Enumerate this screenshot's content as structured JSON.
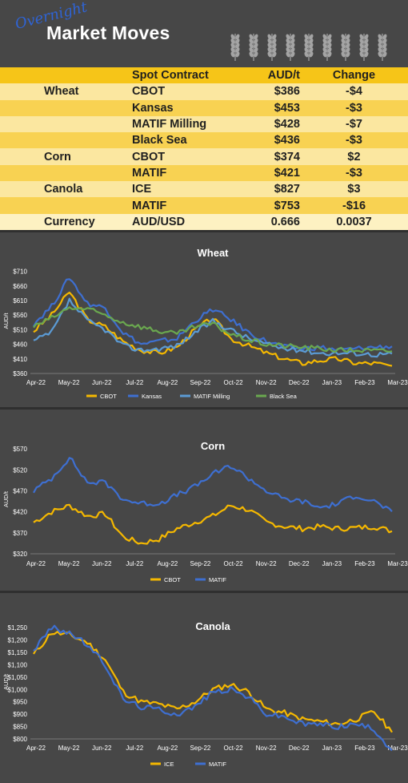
{
  "header": {
    "overnight": "Overnight",
    "title": "Market Moves"
  },
  "table": {
    "headers": {
      "contract": "Spot Contract",
      "price": "AUD/t",
      "change": "Change"
    },
    "rows": [
      {
        "commodity": "Wheat",
        "contract": "CBOT",
        "price": "$386",
        "change": "-$4",
        "dir": "neg"
      },
      {
        "commodity": "",
        "contract": "Kansas",
        "price": "$453",
        "change": "-$3",
        "dir": "neg"
      },
      {
        "commodity": "",
        "contract": "MATIF Milling",
        "price": "$428",
        "change": "-$7",
        "dir": "neg"
      },
      {
        "commodity": "",
        "contract": "Black Sea",
        "price": "$436",
        "change": "-$3",
        "dir": "neg"
      },
      {
        "commodity": "Corn",
        "contract": "CBOT",
        "price": "$374",
        "change": "$2",
        "dir": "pos"
      },
      {
        "commodity": "",
        "contract": "MATIF",
        "price": "$421",
        "change": "-$3",
        "dir": "neg"
      },
      {
        "commodity": "Canola",
        "contract": "ICE",
        "price": "$827",
        "change": "$3",
        "dir": "pos"
      },
      {
        "commodity": "",
        "contract": "MATIF",
        "price": "$753",
        "change": "-$16",
        "dir": "neg"
      },
      {
        "commodity": "Currency",
        "contract": "AUD/USD",
        "price": "0.666",
        "change": "0.0037",
        "dir": "pos"
      }
    ]
  },
  "colors": {
    "yellow": "#f5b800",
    "blue": "#3e6fd1",
    "lightblue": "#5b9bd5",
    "green": "#6aa84f"
  },
  "chart_data": [
    {
      "type": "line",
      "title": "Wheat",
      "ylabel": "AUD/t",
      "ylim": [
        360,
        720
      ],
      "yticks": [
        "$360",
        "$410",
        "$460",
        "$510",
        "$560",
        "$610",
        "$660",
        "$710"
      ],
      "ytick_values": [
        360,
        410,
        460,
        510,
        560,
        610,
        660,
        710
      ],
      "xticks": [
        "Apr-22",
        "May-22",
        "Jun-22",
        "Jul-22",
        "Aug-22",
        "Sep-22",
        "Oct-22",
        "Nov-22",
        "Dec-22",
        "Jan-23",
        "Feb-23",
        "Mar-23"
      ],
      "legend": "bottom",
      "series": [
        {
          "name": "CBOT",
          "color": "#f5b800",
          "values": [
            505,
            560,
            640,
            545,
            520,
            470,
            440,
            430,
            450,
            510,
            550,
            480,
            455,
            430,
            410,
            395,
            405,
            410,
            395,
            395,
            386
          ]
        },
        {
          "name": "Kansas",
          "color": "#3e6fd1",
          "values": [
            530,
            590,
            690,
            600,
            585,
            500,
            460,
            470,
            480,
            540,
            580,
            545,
            500,
            470,
            450,
            445,
            450,
            440,
            445,
            450,
            453
          ]
        },
        {
          "name": "MATIF Milling",
          "color": "#5b9bd5",
          "values": [
            470,
            500,
            610,
            540,
            510,
            455,
            440,
            445,
            455,
            500,
            540,
            510,
            480,
            460,
            445,
            440,
            430,
            430,
            430,
            425,
            428
          ]
        },
        {
          "name": "Black Sea",
          "color": "#6aa84f",
          "values": [
            520,
            550,
            585,
            580,
            560,
            535,
            520,
            505,
            495,
            520,
            530,
            495,
            475,
            460,
            455,
            450,
            445,
            440,
            440,
            438,
            436
          ]
        }
      ]
    },
    {
      "type": "line",
      "title": "Corn",
      "ylabel": "AUD/t",
      "ylim": [
        320,
        580
      ],
      "yticks": [
        "$320",
        "$370",
        "$420",
        "$470",
        "$520",
        "$570"
      ],
      "ytick_values": [
        320,
        370,
        420,
        470,
        520,
        570
      ],
      "xticks": [
        "Apr-22",
        "May-22",
        "Jun-22",
        "Jul-22",
        "Aug-22",
        "Sep-22",
        "Oct-22",
        "Nov-22",
        "Dec-22",
        "Jan-23",
        "Feb-23",
        "Mar-23"
      ],
      "legend": "bottom",
      "series": [
        {
          "name": "CBOT",
          "color": "#f5b800",
          "values": [
            395,
            420,
            435,
            410,
            415,
            360,
            345,
            355,
            380,
            395,
            410,
            435,
            425,
            395,
            385,
            380,
            385,
            380,
            382,
            385,
            374
          ]
        },
        {
          "name": "MATIF",
          "color": "#3e6fd1",
          "values": [
            470,
            500,
            550,
            490,
            490,
            450,
            440,
            440,
            460,
            480,
            510,
            530,
            500,
            470,
            450,
            445,
            430,
            440,
            460,
            445,
            421
          ]
        }
      ]
    },
    {
      "type": "line",
      "title": "Canola",
      "ylabel": "AUD/t",
      "ylim": [
        800,
        1260
      ],
      "yticks": [
        "$800",
        "$850",
        "$900",
        "$950",
        "$1,000",
        "$1,050",
        "$1,100",
        "$1,150",
        "$1,200",
        "$1,250"
      ],
      "ytick_values": [
        800,
        850,
        900,
        950,
        1000,
        1050,
        1100,
        1150,
        1200,
        1250
      ],
      "xticks": [
        "Apr-22",
        "May-22",
        "Jun-22",
        "Jul-22",
        "Aug-22",
        "Sep-22",
        "Oct-22",
        "Nov-22",
        "Dec-22",
        "Jan-23",
        "Feb-23",
        "Mar-23"
      ],
      "legend": "bottom",
      "series": [
        {
          "name": "ICE",
          "color": "#f5b800",
          "values": [
            1140,
            1230,
            1220,
            1190,
            1120,
            990,
            950,
            940,
            920,
            950,
            1000,
            1020,
            990,
            920,
            905,
            880,
            870,
            860,
            880,
            910,
            827
          ]
        },
        {
          "name": "MATIF",
          "color": "#3e6fd1",
          "values": [
            1160,
            1250,
            1230,
            1180,
            1100,
            960,
            930,
            920,
            900,
            930,
            990,
            1000,
            970,
            900,
            890,
            860,
            860,
            850,
            860,
            840,
            753
          ]
        }
      ]
    }
  ]
}
